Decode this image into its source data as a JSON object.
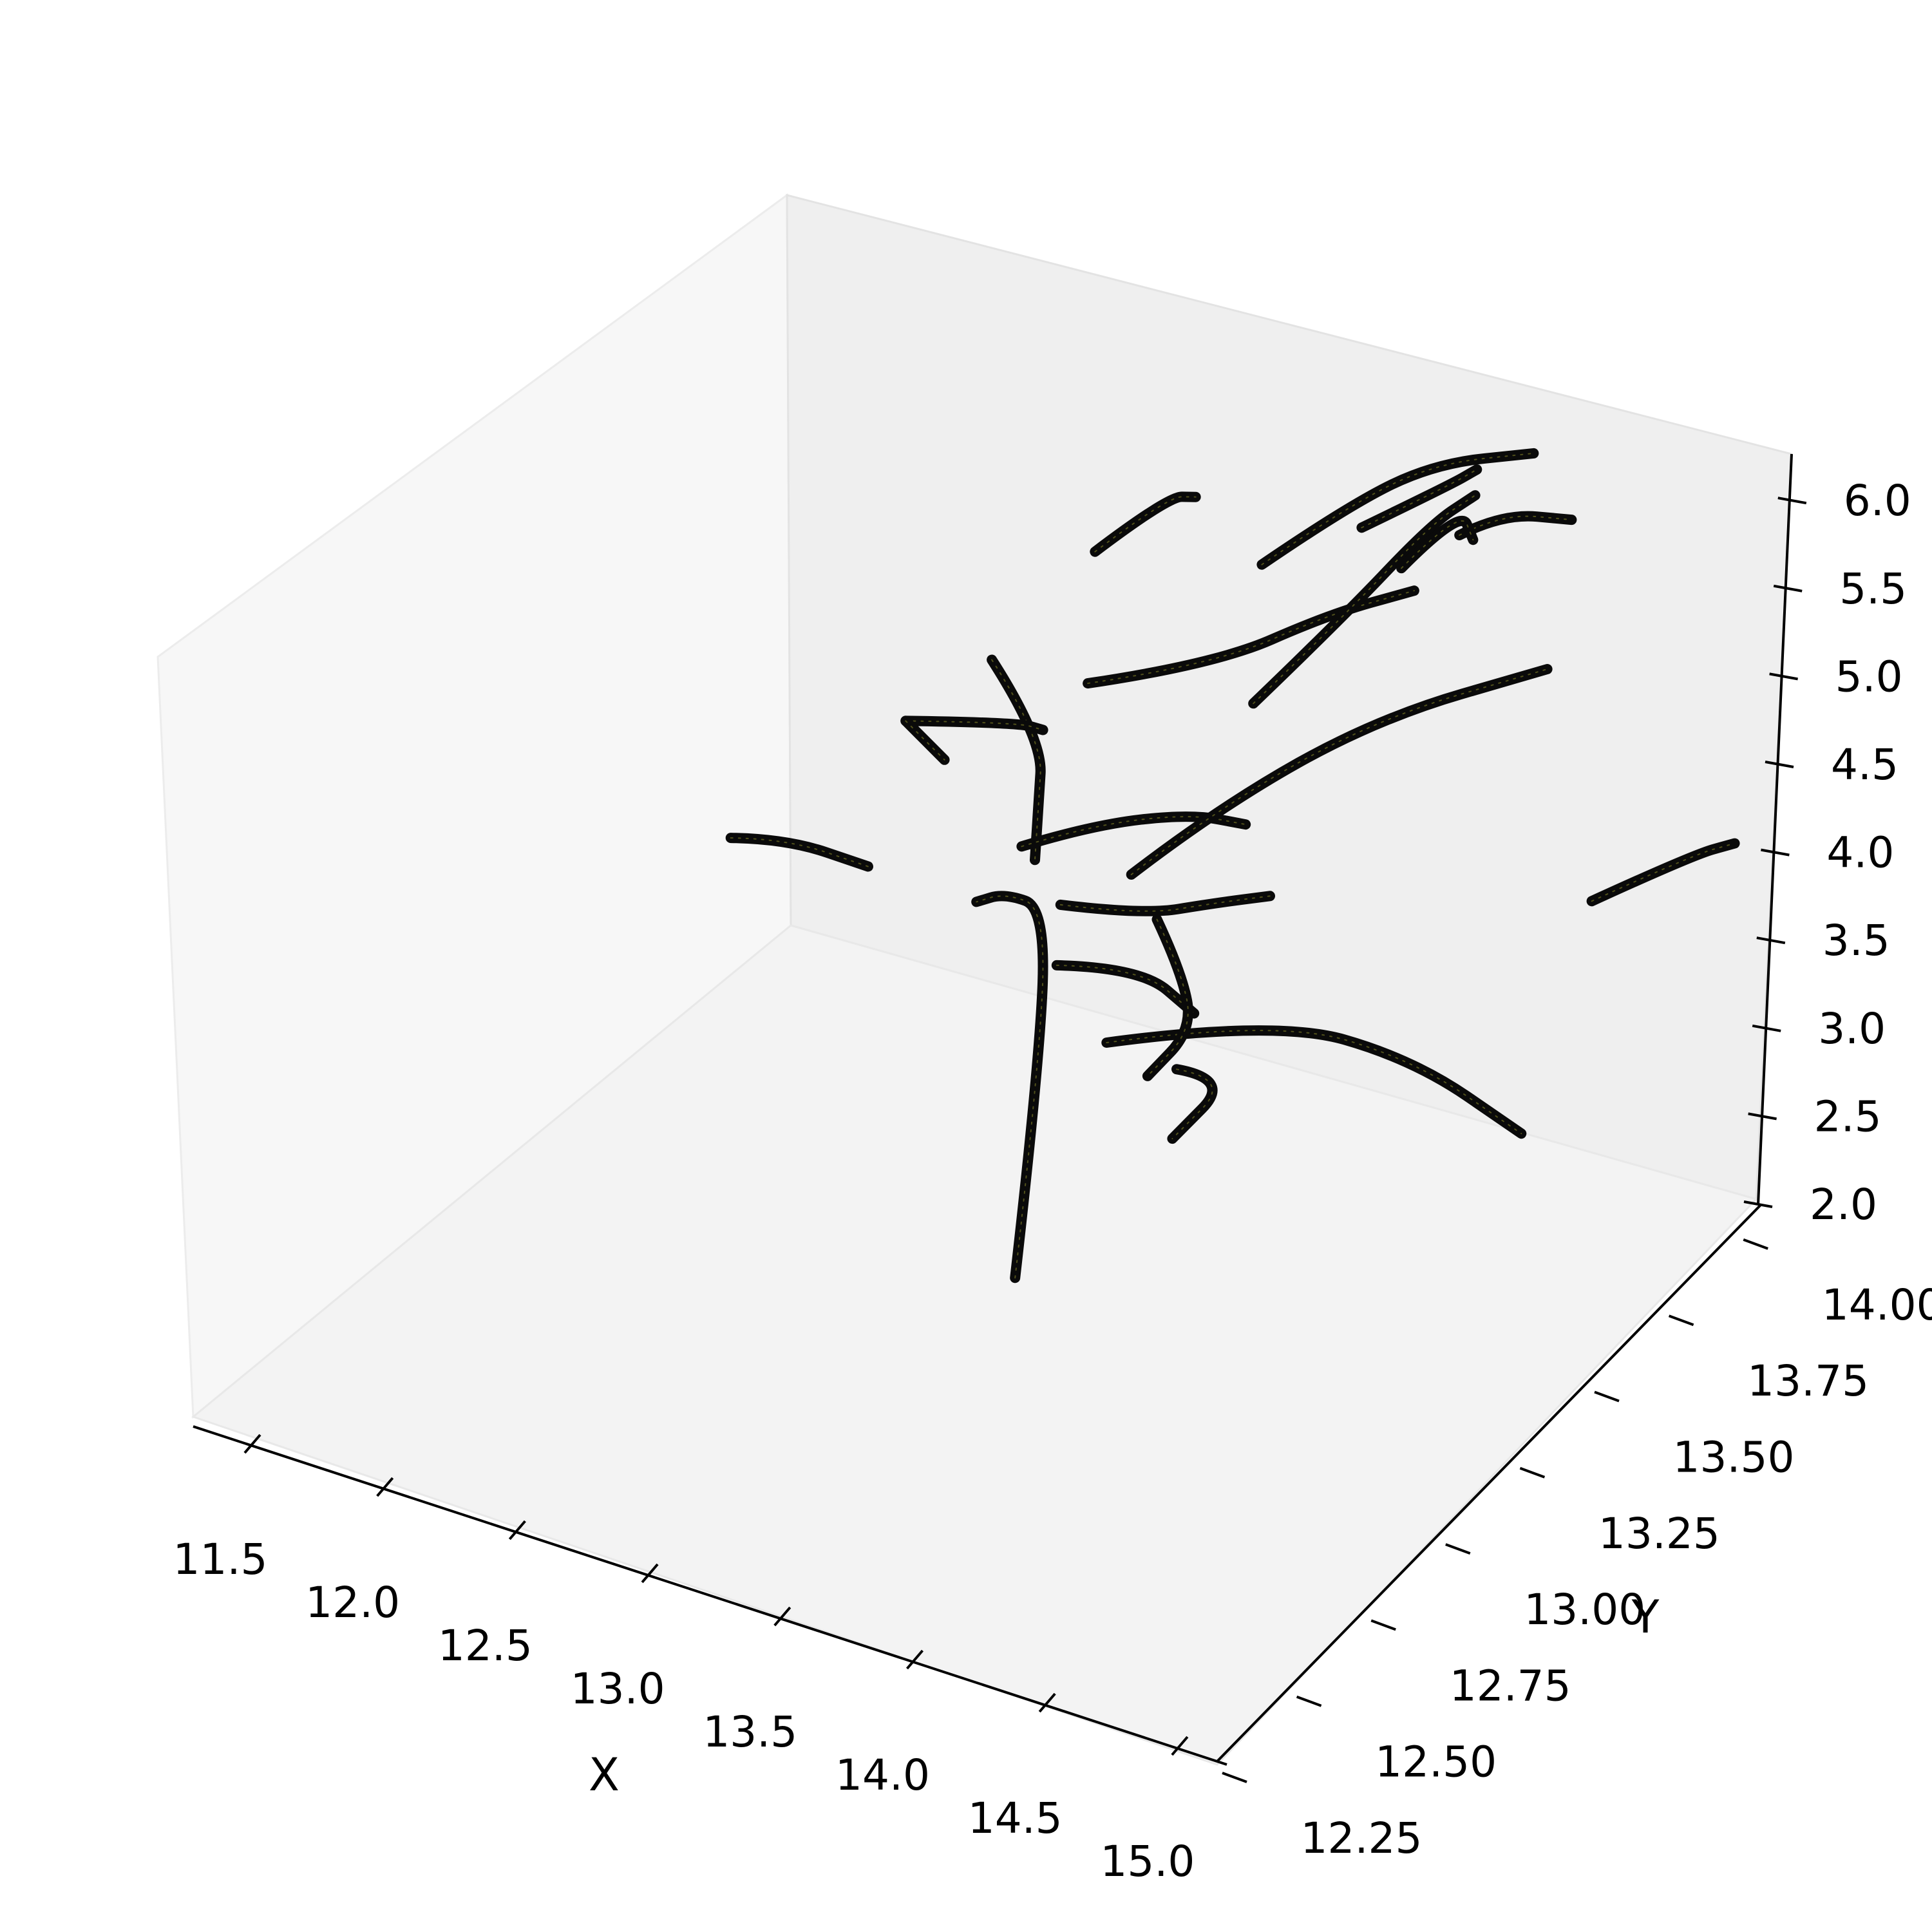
{
  "chart_data": {
    "type": "line3d",
    "title": "",
    "xlabel": "X",
    "ylabel": "Y",
    "zlabel": "",
    "xlim": [
      11.3,
      15.05
    ],
    "ylim": [
      12.2,
      14.2
    ],
    "zlim": [
      2.0,
      6.2
    ],
    "x_ticks": [
      "11.5",
      "12.0",
      "12.5",
      "13.0",
      "13.5",
      "14.0",
      "14.5",
      "15.0"
    ],
    "y_ticks": [
      "12.25",
      "12.50",
      "12.75",
      "13.00",
      "13.25",
      "13.50",
      "13.75",
      "14.00"
    ],
    "z_ticks": [
      "2.0",
      "2.5",
      "3.0",
      "3.5",
      "4.0",
      "4.5",
      "5.0",
      "5.5",
      "6.0"
    ],
    "grid": false,
    "line_color": "#0a0a0a",
    "highlight_color": "#8a8a2a",
    "series": [
      {
        "x": [
          13.1,
          13.15,
          13.2,
          13.1,
          13.0
        ],
        "y": [
          13.3,
          13.3,
          13.25,
          13.2,
          13.2
        ],
        "z": [
          2.2,
          3.4,
          4.4,
          4.5,
          4.4
        ]
      },
      {
        "x": [
          13.7,
          14.2,
          14.6,
          14.9
        ],
        "y": [
          13.0,
          13.1,
          13.2,
          13.3
        ],
        "z": [
          4.25,
          4.5,
          4.35,
          3.95
        ]
      },
      {
        "x": [
          12.6,
          12.9,
          13.0,
          13.1
        ],
        "y": [
          13.6,
          13.5,
          13.4,
          13.3
        ],
        "z": [
          5.0,
          4.85,
          4.65,
          4.55
        ]
      },
      {
        "x": [
          12.0,
          12.2,
          12.5
        ],
        "y": [
          13.3,
          13.3,
          13.3
        ],
        "z": [
          4.1,
          4.2,
          4.2
        ]
      },
      {
        "x": [
          12.3,
          12.7,
          12.9
        ],
        "y": [
          13.6,
          13.6,
          13.5
        ],
        "z": [
          4.5,
          4.7,
          4.9
        ]
      },
      {
        "x": [
          12.3,
          12.55
        ],
        "y": [
          13.6,
          13.5
        ],
        "z": [
          4.5,
          4.55
        ]
      },
      {
        "x": [
          13.05,
          13.3,
          13.6,
          13.75
        ],
        "y": [
          13.3,
          13.3,
          13.35,
          13.4
        ],
        "z": [
          4.6,
          4.85,
          5.0,
          4.95
        ]
      },
      {
        "x": [
          13.45,
          13.6,
          14.0,
          14.5
        ],
        "y": [
          13.3,
          13.45,
          13.6,
          13.7
        ],
        "z": [
          4.65,
          4.9,
          5.4,
          5.8
        ]
      },
      {
        "x": [
          13.2,
          13.5,
          13.7,
          13.85
        ],
        "y": [
          13.3,
          13.3,
          13.35,
          13.4
        ],
        "z": [
          4.35,
          4.45,
          4.55,
          4.6
        ]
      },
      {
        "x": [
          13.3,
          13.55,
          13.7
        ],
        "y": [
          13.2,
          13.25,
          13.3
        ],
        "z": [
          4.2,
          4.25,
          4.0
        ]
      },
      {
        "x": [
          13.55,
          13.7,
          13.8,
          13.75
        ],
        "y": [
          13.3,
          13.25,
          13.2,
          13.1
        ],
        "z": [
          4.45,
          4.3,
          4.1,
          3.95
        ]
      },
      {
        "x": [
          13.75,
          13.95,
          13.85
        ],
        "y": [
          13.2,
          13.2,
          13.1
        ],
        "z": [
          3.85,
          3.9,
          3.65
        ]
      },
      {
        "x": [
          12.95,
          13.3,
          13.6,
          13.8
        ],
        "y": [
          13.6,
          13.7,
          13.8,
          13.9
        ],
        "z": [
          5.05,
          5.2,
          5.5,
          5.6
        ]
      },
      {
        "x": [
          13.55,
          13.7,
          13.85,
          13.9
        ],
        "y": [
          13.6,
          13.75,
          13.9,
          14.0
        ],
        "z": [
          5.25,
          5.6,
          6.0,
          6.05
        ]
      },
      {
        "x": [
          12.85,
          13.0,
          13.1
        ],
        "y": [
          13.7,
          13.8,
          13.8
        ],
        "z": [
          5.6,
          5.85,
          5.9
        ]
      },
      {
        "x": [
          13.35,
          13.55,
          13.75,
          14.0
        ],
        "y": [
          13.8,
          13.9,
          14.0,
          14.1
        ],
        "z": [
          5.65,
          5.95,
          6.15,
          6.2
        ]
      },
      {
        "x": [
          13.6,
          13.8,
          13.85
        ],
        "y": [
          13.9,
          14.0,
          14.05
        ],
        "z": [
          5.85,
          6.05,
          6.1
        ]
      },
      {
        "x": [
          13.85,
          14.0,
          14.2
        ],
        "y": [
          14.0,
          14.0,
          14.05
        ],
        "z": [
          5.8,
          6.0,
          6.0
        ]
      },
      {
        "x": [
          13.75,
          13.85,
          13.9
        ],
        "y": [
          13.9,
          14.0,
          14.0
        ],
        "z": [
          5.7,
          5.95,
          5.8
        ]
      },
      {
        "x": [
          14.7,
          14.95,
          15.05
        ],
        "y": [
          13.7,
          13.8,
          13.85
        ],
        "z": [
          4.6,
          4.85,
          4.9
        ]
      }
    ]
  }
}
